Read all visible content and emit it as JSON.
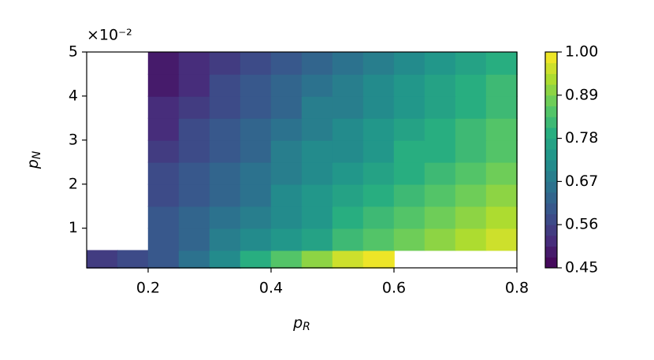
{
  "chart_data": {
    "type": "contour",
    "xlabel": [
      "p",
      "R"
    ],
    "ylabel": [
      "p",
      "N"
    ],
    "y_scale_label": "×10⁻²",
    "x_edges": [
      0.1,
      0.15,
      0.2,
      0.25,
      0.3,
      0.35,
      0.4,
      0.45,
      0.5,
      0.55,
      0.6,
      0.65,
      0.7,
      0.75,
      0.8
    ],
    "y_edges": [
      0.001,
      0.005,
      0.01,
      0.015,
      0.02,
      0.025,
      0.03,
      0.035,
      0.04,
      0.045,
      0.05
    ],
    "z": [
      [
        0.55,
        0.56,
        0.6,
        0.66,
        0.72,
        0.78,
        0.84,
        0.9,
        0.95,
        0.98,
        null,
        null,
        null,
        null
      ],
      [
        null,
        null,
        0.6,
        0.63,
        0.67,
        0.7,
        0.74,
        0.77,
        0.81,
        0.84,
        0.87,
        0.9,
        0.93,
        0.96
      ],
      [
        null,
        null,
        0.59,
        0.62,
        0.65,
        0.68,
        0.72,
        0.75,
        0.78,
        0.81,
        0.84,
        0.87,
        0.9,
        0.92
      ],
      [
        null,
        null,
        0.57,
        0.6,
        0.63,
        0.66,
        0.7,
        0.73,
        0.76,
        0.79,
        0.82,
        0.85,
        0.87,
        0.9
      ],
      [
        null,
        null,
        0.56,
        0.59,
        0.62,
        0.65,
        0.68,
        0.71,
        0.74,
        0.77,
        0.8,
        0.82,
        0.85,
        0.88
      ],
      [
        null,
        null,
        0.55,
        0.58,
        0.61,
        0.64,
        0.67,
        0.7,
        0.72,
        0.75,
        0.78,
        0.8,
        0.83,
        0.86
      ],
      [
        null,
        null,
        0.53,
        0.56,
        0.59,
        0.62,
        0.65,
        0.68,
        0.71,
        0.73,
        0.76,
        0.79,
        0.81,
        0.84
      ],
      [
        null,
        null,
        0.52,
        0.55,
        0.58,
        0.61,
        0.64,
        0.67,
        0.69,
        0.72,
        0.75,
        0.77,
        0.8,
        0.82
      ],
      [
        null,
        null,
        0.5,
        0.53,
        0.56,
        0.59,
        0.62,
        0.65,
        0.68,
        0.7,
        0.73,
        0.76,
        0.78,
        0.81
      ],
      [
        null,
        null,
        0.48,
        0.52,
        0.55,
        0.58,
        0.61,
        0.64,
        0.66,
        0.69,
        0.72,
        0.74,
        0.77,
        0.8
      ]
    ],
    "colormap": "viridis",
    "xlim": [
      0.1,
      0.8
    ],
    "xticks": [
      0.2,
      0.4,
      0.6,
      0.8
    ],
    "ylim": [
      0.001,
      0.05
    ],
    "yticks": [
      {
        "value": 0.01,
        "label": "1"
      },
      {
        "value": 0.02,
        "label": "2"
      },
      {
        "value": 0.03,
        "label": "3"
      },
      {
        "value": 0.04,
        "label": "4"
      },
      {
        "value": 0.05,
        "label": "5"
      }
    ],
    "clim": [
      0.45,
      1.0
    ],
    "cticks": [
      0.45,
      0.56,
      0.67,
      0.78,
      0.89,
      {
        "value": 1.0,
        "label": "1.00"
      }
    ]
  }
}
